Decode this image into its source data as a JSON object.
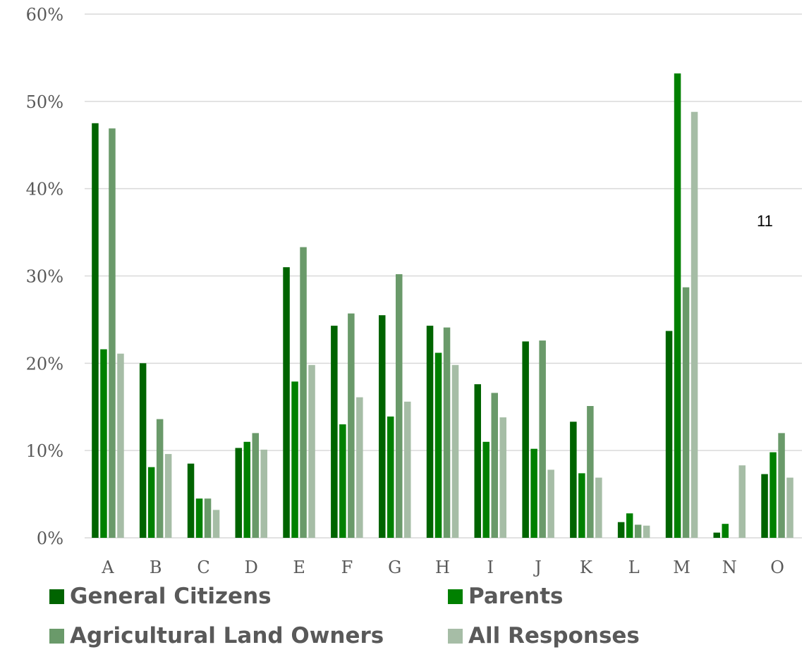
{
  "chart_data": {
    "type": "bar",
    "title": "",
    "xlabel": "",
    "ylabel": "",
    "ylim": [
      0,
      60
    ],
    "yticks": [
      "0%",
      "10%",
      "20%",
      "30%",
      "40%",
      "50%",
      "60%"
    ],
    "grid": true,
    "legend_position": "bottom",
    "categories": [
      "A",
      "B",
      "C",
      "D",
      "E",
      "F",
      "G",
      "H",
      "I",
      "J",
      "K",
      "L",
      "M",
      "N",
      "O"
    ],
    "series": [
      {
        "name": "General Citizens",
        "color": "#006400",
        "values": [
          47.5,
          20.0,
          8.5,
          10.3,
          31.0,
          24.3,
          25.5,
          24.3,
          17.6,
          22.5,
          13.3,
          1.8,
          23.7,
          0.6,
          7.3
        ]
      },
      {
        "name": "Parents",
        "color": "#008000",
        "values": [
          21.6,
          8.1,
          4.5,
          11.0,
          17.9,
          13.0,
          13.9,
          21.2,
          11.0,
          10.2,
          7.4,
          2.8,
          53.2,
          1.6,
          9.8
        ]
      },
      {
        "name": "Agricultural Land Owners",
        "color": "#6a9a6a",
        "values": [
          46.9,
          13.6,
          4.5,
          12.0,
          33.3,
          25.7,
          30.2,
          24.1,
          16.6,
          22.6,
          15.1,
          1.5,
          28.7,
          0.0,
          12.0
        ]
      },
      {
        "name": "All Responses",
        "color": "#a6bda6",
        "values": [
          21.1,
          9.6,
          3.2,
          10.1,
          19.8,
          16.1,
          15.6,
          19.8,
          13.8,
          7.8,
          6.9,
          1.4,
          48.8,
          8.3,
          6.9
        ]
      }
    ],
    "annotation": "11"
  }
}
